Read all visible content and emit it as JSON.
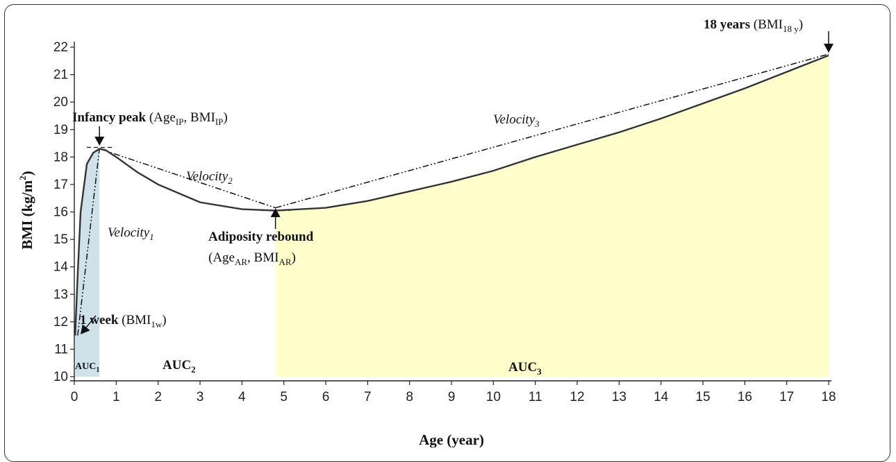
{
  "chart_data": {
    "type": "line",
    "xlabel": "Age (year)",
    "ylabel": "BMI (kg/m²)",
    "ylabel_main": "BMI (kg/m",
    "ylabel_sup": "2",
    "ylabel_end": ")",
    "xlim": [
      0,
      18
    ],
    "ylim": [
      10,
      22
    ],
    "xticks": [
      "0",
      "1",
      "2",
      "3",
      "4",
      "5",
      "6",
      "7",
      "8",
      "9",
      "10",
      "11",
      "12",
      "13",
      "14",
      "15",
      "16",
      "17",
      "18"
    ],
    "yticks": [
      "10",
      "11",
      "12",
      "13",
      "14",
      "15",
      "16",
      "17",
      "18",
      "19",
      "20",
      "21",
      "22"
    ],
    "grid": false,
    "curve": {
      "x": [
        0.02,
        0.08,
        0.15,
        0.3,
        0.45,
        0.6,
        0.75,
        1.0,
        1.5,
        2.0,
        3.0,
        4.0,
        4.8,
        6.0,
        7.0,
        8.0,
        9.0,
        10.0,
        11.0,
        12.0,
        13.0,
        14.0,
        15.0,
        16.0,
        17.0,
        18.0
      ],
      "y": [
        11.5,
        13.7,
        16.0,
        17.75,
        18.15,
        18.3,
        18.25,
        18.0,
        17.45,
        17.0,
        16.35,
        16.1,
        16.05,
        16.15,
        16.4,
        16.75,
        17.1,
        17.5,
        18.0,
        18.45,
        18.9,
        19.4,
        19.95,
        20.5,
        21.1,
        21.7
      ]
    },
    "velocity_lines": [
      {
        "x": [
          0.08,
          0.6
        ],
        "y": [
          11.5,
          18.3
        ]
      },
      {
        "x": [
          0.6,
          4.8
        ],
        "y": [
          18.3,
          16.15
        ]
      },
      {
        "x": [
          4.8,
          18.0
        ],
        "y": [
          16.15,
          21.75
        ]
      }
    ],
    "shaded_regions": [
      {
        "x0": 0.02,
        "x1": 0.6,
        "color": "#cfe2ea"
      },
      {
        "x0": 4.8,
        "x1": 18.0,
        "color": "#ffffcc"
      }
    ],
    "peak_marker": {
      "x0": 0.3,
      "x1": 0.95,
      "y": 18.35
    },
    "rebound_marker": {
      "x0": 4.45,
      "x1": 5.15,
      "y": 16.05
    },
    "annotations": {
      "infancy_peak": {
        "bold": "Infancy peak",
        "p1": " (Age",
        "s1": "IP",
        "p2": ", BMI",
        "s2": "IP",
        "p3": ")"
      },
      "adiposity_rebound_line1": "Adiposity rebound",
      "adiposity_rebound_line2": {
        "p1": "(Age",
        "s1": "AR",
        "p2": ", BMI",
        "s2": "AR",
        "p3": ")"
      },
      "one_week": {
        "bold": "1 week",
        "p1": " (BMI",
        "s1": "1w",
        "p2": ")"
      },
      "eighteen_years": {
        "bold": "18 years",
        "p1": " (BMI",
        "s1": "18 y",
        "p2": ")"
      },
      "velocity1": {
        "main": "Velocity",
        "sub": "1"
      },
      "velocity2": {
        "main": "Velocity",
        "sub": "2"
      },
      "velocity3": {
        "main": "Velocity",
        "sub": "3"
      },
      "auc1": {
        "main": "AUC",
        "sub": "1"
      },
      "auc2": {
        "main": "AUC",
        "sub": "2"
      },
      "auc3": {
        "main": "AUC",
        "sub": "3"
      }
    },
    "colors": {
      "curve": "#333333",
      "auc1_fill": "#cfe2ea",
      "auc3_fill": "#ffffcc"
    }
  }
}
